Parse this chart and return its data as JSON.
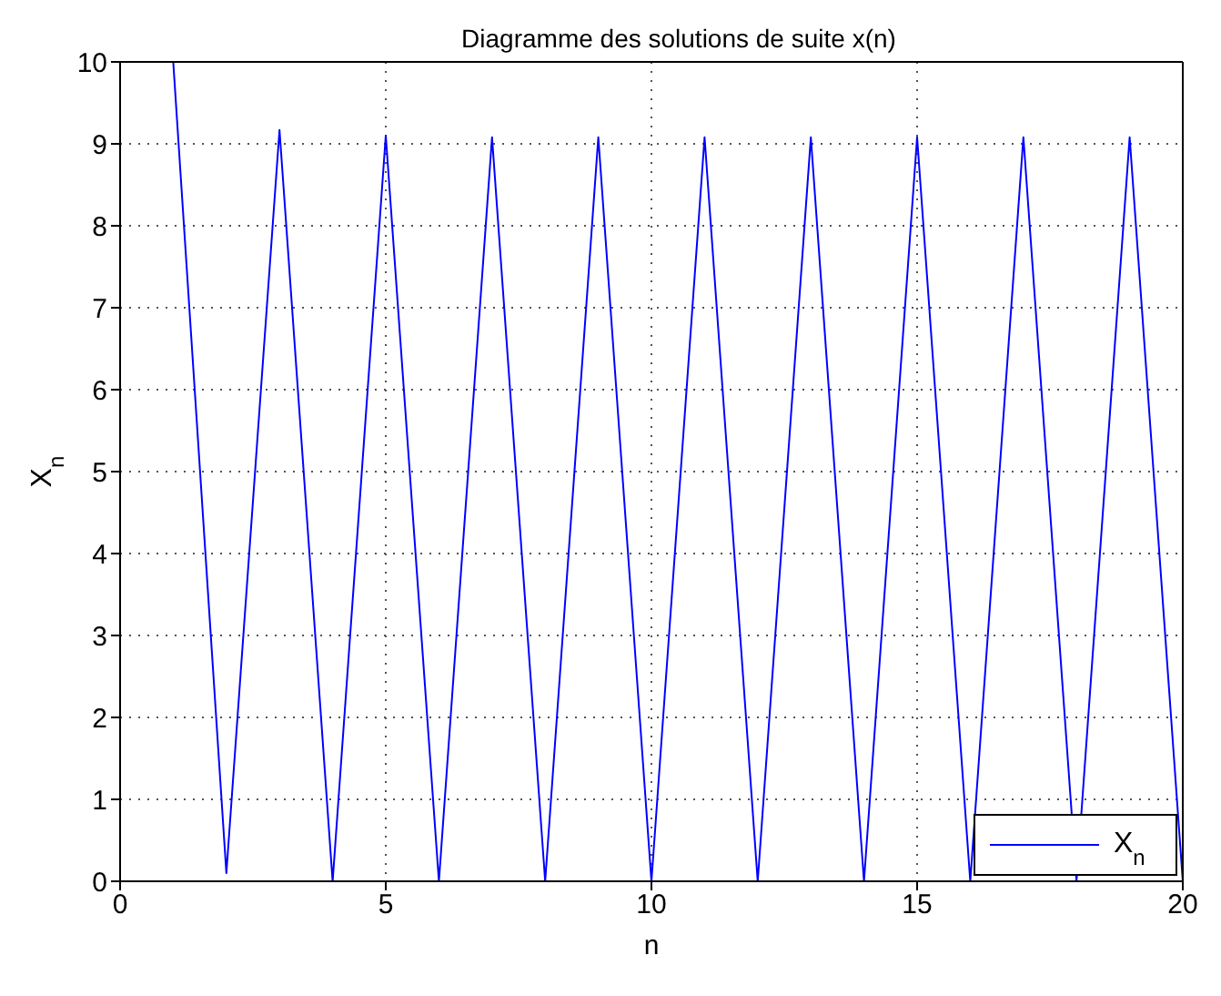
{
  "chart_data": {
    "type": "line",
    "title": "Diagramme des solutions de suite x(n)",
    "xlabel": "n",
    "ylabel": "X$_{n}$",
    "x": [
      1,
      2,
      3,
      4,
      5,
      6,
      7,
      8,
      9,
      10,
      11,
      12,
      13,
      14,
      15,
      16,
      17,
      18,
      19,
      20
    ],
    "series": [
      {
        "name": "X$_{n}$",
        "color": "#0000ff",
        "values": [
          10,
          0.1,
          9.17,
          0,
          9.1,
          0,
          9.08,
          0,
          9.08,
          0,
          9.08,
          0,
          9.08,
          0,
          9.08,
          0,
          9.08,
          0,
          9.08,
          0
        ]
      }
    ],
    "xlim": [
      0,
      20
    ],
    "xticks": [
      0,
      5,
      10,
      15,
      20
    ],
    "ylim": [
      0,
      10
    ],
    "yticks": [
      0,
      1,
      2,
      3,
      4,
      5,
      6,
      7,
      8,
      9,
      10
    ],
    "grid": true,
    "legend": "bottom right",
    "marker": "none",
    "line_style": "solid"
  }
}
